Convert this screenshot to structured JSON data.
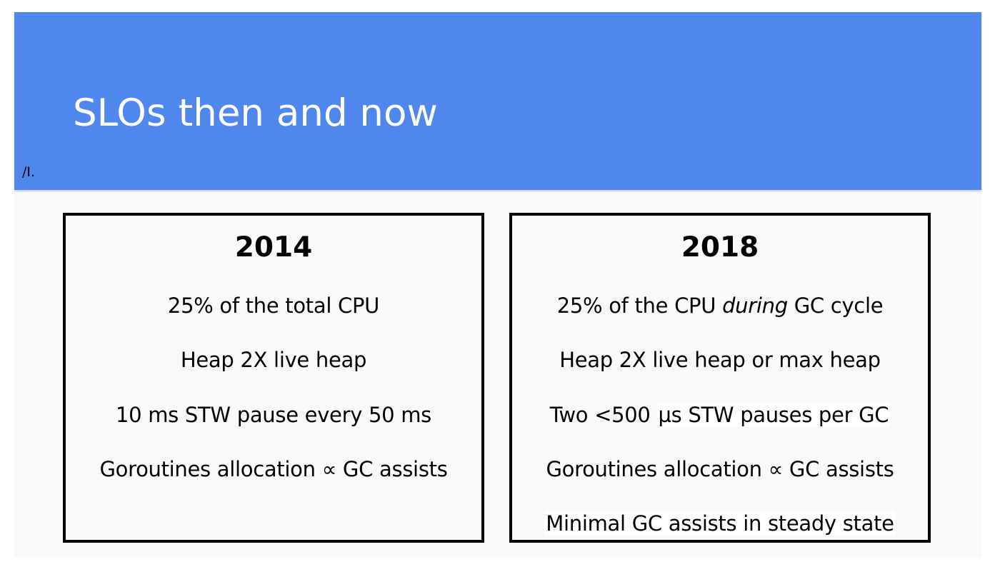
{
  "header": {
    "title": "SLOs then and now",
    "mark": "/I."
  },
  "columns": [
    {
      "year": "2014",
      "items": [
        "25% of the total CPU",
        "Heap 2X live heap",
        "10 ms STW pause every 50 ms",
        "Goroutines allocation ∝ GC assists"
      ]
    },
    {
      "year": "2018",
      "items": {
        "cpu_before": "25% of the CPU ",
        "cpu_emphasis": "during",
        "cpu_after": " GC cycle",
        "heap": "Heap 2X live heap or max heap",
        "pause_prefix": "Two <500 ",
        "pause_highlight": "µs STW pauses per GC",
        "assists": "Goroutines allocation ∝ GC assists",
        "steady": "Minimal GC assists in steady state"
      }
    }
  ],
  "colors": {
    "header_background": "#5087ec",
    "slide_background": "#f9f9f9",
    "title_text": "#ffffff",
    "body_text": "#000000",
    "box_border": "#000000"
  }
}
